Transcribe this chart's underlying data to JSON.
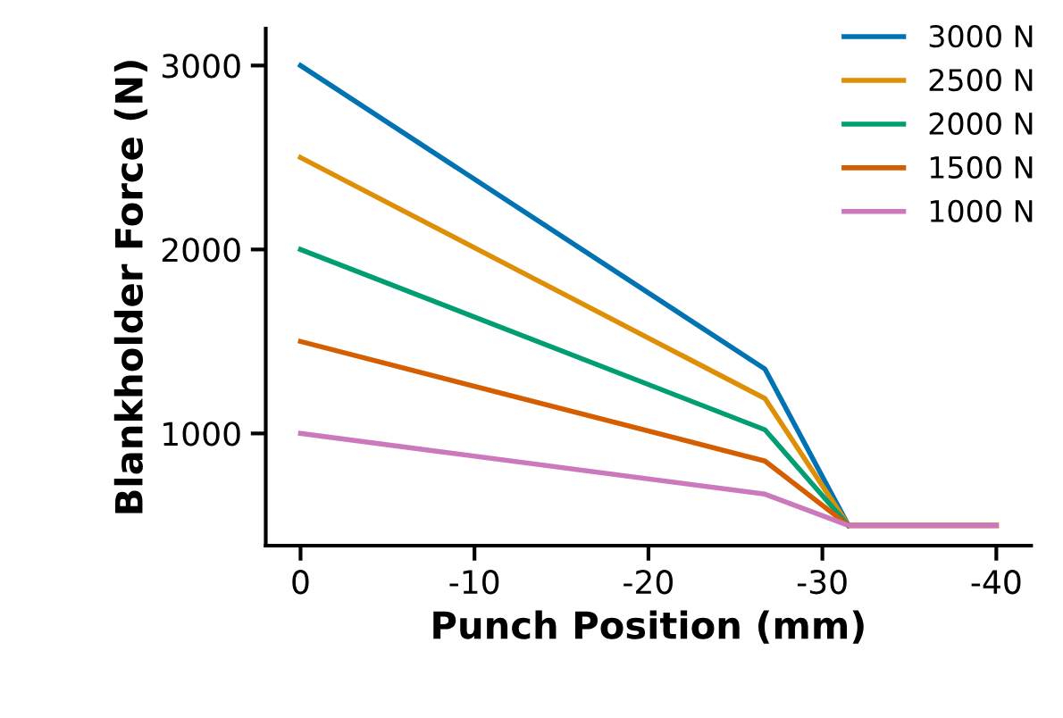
{
  "chart_data": {
    "type": "line",
    "xlabel": "Punch Position (mm)",
    "ylabel": "Blankholder Force (N)",
    "x": [
      0,
      -26.7,
      -31.5,
      -40
    ],
    "series": [
      {
        "name": "3000 N",
        "color": "#0173b2",
        "values": [
          3000,
          1350,
          500,
          null
        ]
      },
      {
        "name": "2500 N",
        "color": "#de8f05",
        "values": [
          2500,
          1190,
          500,
          500
        ]
      },
      {
        "name": "2000 N",
        "color": "#029e73",
        "values": [
          2000,
          1020,
          500,
          null
        ]
      },
      {
        "name": "1500 N",
        "color": "#d55e00",
        "values": [
          1500,
          850,
          500,
          500
        ]
      },
      {
        "name": "1000 N",
        "color": "#cc78bc",
        "values": [
          1000,
          670,
          500,
          500
        ]
      }
    ],
    "xlim": [
      2,
      -42
    ],
    "xticks": [
      0,
      {
        "value": -10,
        "label": "-10"
      },
      {
        "value": -20,
        "label": "-20"
      },
      {
        "value": -30,
        "label": "-30"
      },
      {
        "value": -40,
        "label": "-40"
      }
    ],
    "ylim": [
      390,
      3200
    ],
    "yticks": [
      1000,
      2000,
      3000
    ],
    "grid": false,
    "legend": "top right",
    "marker": "none",
    "line_style": "solid"
  }
}
